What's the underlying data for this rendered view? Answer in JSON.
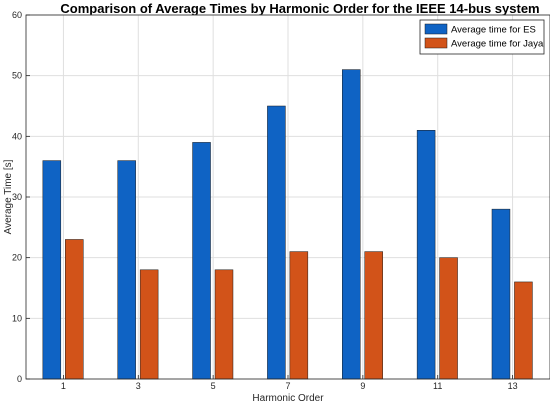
{
  "chart_data": {
    "type": "bar",
    "title": "Comparison of Average Times by Harmonic Order for the IEEE 14-bus system",
    "xlabel": "Harmonic Order",
    "ylabel": "Average Time [s]",
    "categories": [
      "1",
      "3",
      "5",
      "7",
      "9",
      "11",
      "13"
    ],
    "ylim": [
      0,
      60
    ],
    "yticks": [
      "0",
      "10",
      "20",
      "30",
      "40",
      "50",
      "60"
    ],
    "grid": true,
    "legend_position": "top-right",
    "series": [
      {
        "name": "Average time for ES",
        "values": [
          36,
          36,
          39,
          45,
          51,
          41,
          28
        ],
        "color": "#0f63c4"
      },
      {
        "name": "Average time for Jaya",
        "values": [
          23,
          18,
          18,
          21,
          21,
          20,
          16
        ],
        "color": "#d25319"
      }
    ]
  }
}
